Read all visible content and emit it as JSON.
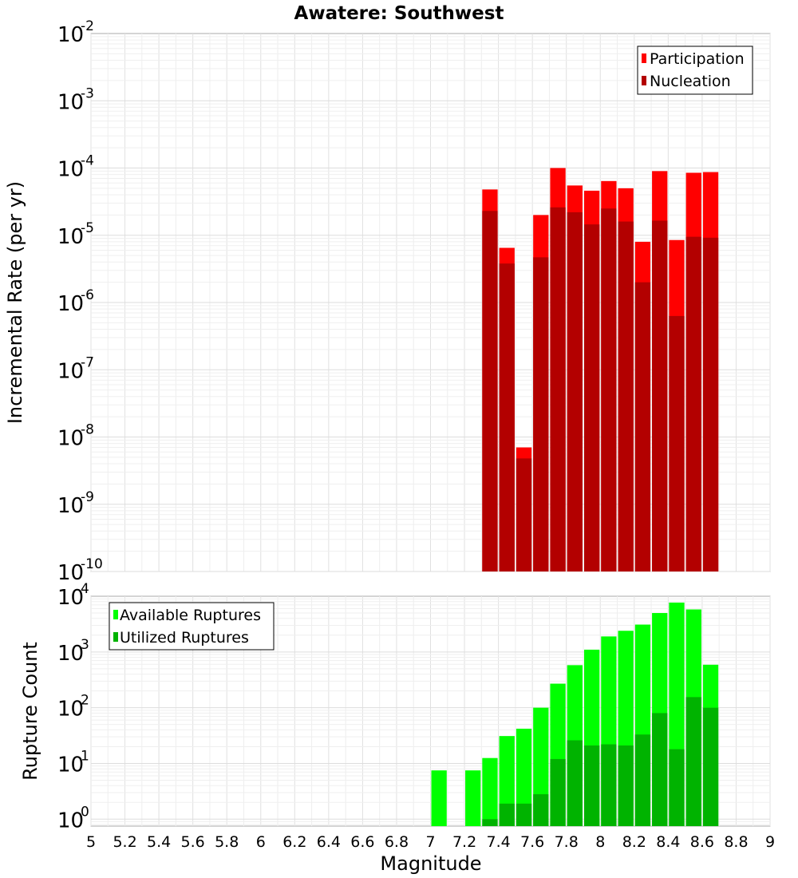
{
  "chart_data": [
    {
      "type": "bar",
      "title": "Awatere: Southwest",
      "xlabel": "",
      "ylabel": "Incremental Rate (per yr)",
      "yscale": "log",
      "xlim": [
        5,
        9
      ],
      "ylim": [
        1e-10,
        0.01
      ],
      "grid": true,
      "legend_position": "top-right",
      "y_tick_exponents": [
        "-2",
        "-3",
        "-4",
        "-5",
        "-6",
        "-7",
        "-8",
        "-9",
        "-10"
      ],
      "bin_width": 0.1,
      "series": [
        {
          "name": "Participation",
          "color": "#ff0000",
          "x": [
            7.35,
            7.45,
            7.55,
            7.65,
            7.75,
            7.85,
            7.95,
            8.05,
            8.15,
            8.25,
            8.35,
            8.45,
            8.55,
            8.65
          ],
          "values": [
            4.8e-05,
            6.5e-06,
            7e-09,
            2e-05,
            0.0001,
            5.5e-05,
            4.6e-05,
            6.4e-05,
            5e-05,
            8e-06,
            9e-05,
            8.5e-06,
            8.5e-05,
            8.7e-05
          ]
        },
        {
          "name": "Nucleation",
          "color": "#b30000",
          "x": [
            7.35,
            7.45,
            7.55,
            7.65,
            7.75,
            7.85,
            7.95,
            8.05,
            8.15,
            8.25,
            8.35,
            8.45,
            8.55,
            8.65
          ],
          "values": [
            2.3e-05,
            3.8e-06,
            4.8e-09,
            4.7e-06,
            2.6e-05,
            2.2e-05,
            1.45e-05,
            2.5e-05,
            1.6e-05,
            2e-06,
            1.65e-05,
            6.3e-07,
            9.5e-06,
            9.2e-06
          ]
        }
      ]
    },
    {
      "type": "bar",
      "title": "",
      "xlabel": "Magnitude",
      "ylabel": "Rupture Count",
      "yscale": "log",
      "xlim": [
        5,
        9
      ],
      "ylim": [
        0.75,
        10000
      ],
      "grid": true,
      "legend_position": "top-left",
      "x_ticks": [
        "5",
        "5.2",
        "5.4",
        "5.6",
        "5.8",
        "6",
        "6.2",
        "6.4",
        "6.6",
        "6.8",
        "7",
        "7.2",
        "7.4",
        "7.6",
        "7.8",
        "8",
        "8.2",
        "8.4",
        "8.6",
        "8.8",
        "9"
      ],
      "y_tick_exponents": [
        "4",
        "3",
        "2",
        "1",
        "0"
      ],
      "bin_width": 0.1,
      "series": [
        {
          "name": "Available Ruptures",
          "color": "#00ff00",
          "x": [
            7.05,
            7.25,
            7.35,
            7.45,
            7.55,
            7.65,
            7.75,
            7.85,
            7.95,
            8.05,
            8.15,
            8.25,
            8.35,
            8.45,
            8.55,
            8.65
          ],
          "values": [
            7.5,
            7.5,
            12.5,
            31,
            42,
            100,
            270,
            580,
            1100,
            1900,
            2400,
            3100,
            5000,
            7700,
            5800,
            590
          ]
        },
        {
          "name": "Utilized Ruptures",
          "color": "#00b300",
          "x": [
            7.35,
            7.45,
            7.55,
            7.65,
            7.75,
            7.85,
            7.95,
            8.05,
            8.15,
            8.25,
            8.35,
            8.45,
            8.55,
            8.65
          ],
          "values": [
            1,
            1.9,
            1.9,
            2.8,
            12,
            26,
            21,
            22,
            21,
            33,
            80,
            18,
            155,
            100
          ]
        }
      ]
    }
  ]
}
